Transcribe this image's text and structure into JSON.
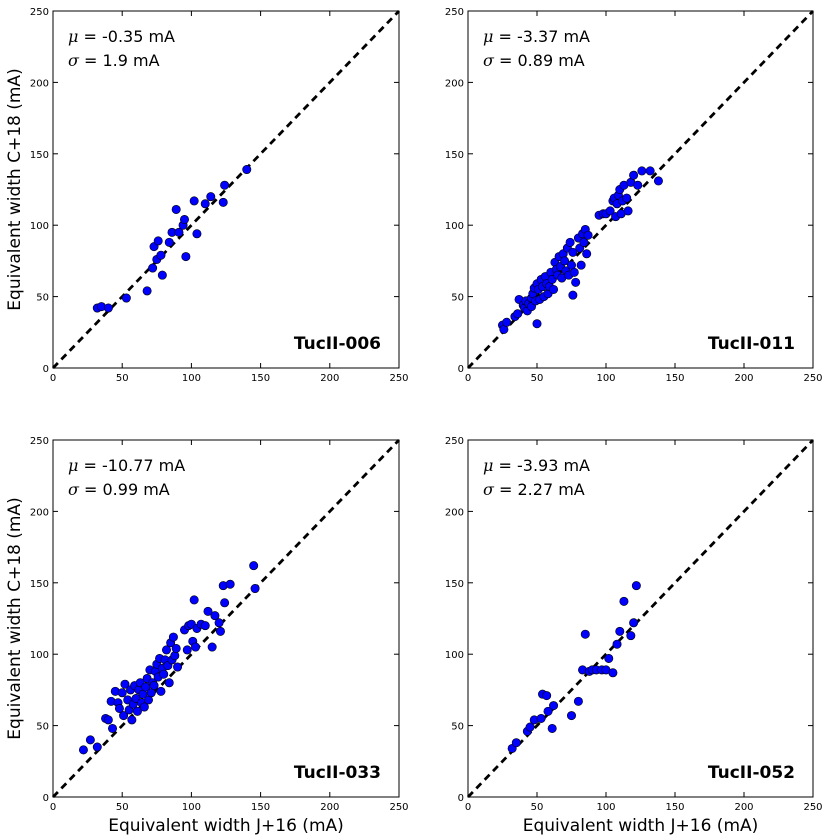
{
  "figure": {
    "xlabel": "Equivalent width J+16 (mA)",
    "ylabel": "Equivalent width C+18 (mA)",
    "mu_symbol": "μ",
    "sigma_symbol": "σ"
  },
  "chart_data": [
    {
      "type": "scatter",
      "name": "TucII-006",
      "mu_text": " = -0.35 mA",
      "sigma_text": " = 1.9 mA",
      "xlim": [
        0,
        250
      ],
      "ylim": [
        0,
        250
      ],
      "xticks": [
        0,
        50,
        100,
        150,
        200,
        250
      ],
      "yticks": [
        0,
        50,
        100,
        150,
        200,
        250
      ],
      "xlabel": "",
      "ylabel": "Equivalent width C+18 (mA)",
      "reference_line": "y = x (dashed)",
      "marker_color": "#0000ff",
      "points": [
        [
          32,
          42
        ],
        [
          35,
          43
        ],
        [
          40,
          42
        ],
        [
          53,
          49
        ],
        [
          68,
          54
        ],
        [
          72,
          70
        ],
        [
          73,
          85
        ],
        [
          75,
          76
        ],
        [
          76,
          89
        ],
        [
          78,
          79
        ],
        [
          79,
          65
        ],
        [
          84,
          88
        ],
        [
          86,
          95
        ],
        [
          89,
          111
        ],
        [
          91,
          95
        ],
        [
          94,
          100
        ],
        [
          95,
          104
        ],
        [
          96,
          78
        ],
        [
          102,
          117
        ],
        [
          104,
          94
        ],
        [
          110,
          115
        ],
        [
          114,
          120
        ],
        [
          123,
          116
        ],
        [
          124,
          128
        ],
        [
          140,
          139
        ]
      ]
    },
    {
      "type": "scatter",
      "name": "TucII-011",
      "mu_text": " = -3.37 mA",
      "sigma_text": " = 0.89 mA",
      "xlim": [
        0,
        250
      ],
      "ylim": [
        0,
        250
      ],
      "xticks": [
        0,
        50,
        100,
        150,
        200,
        250
      ],
      "yticks": [
        0,
        50,
        100,
        150,
        200,
        250
      ],
      "xlabel": "",
      "ylabel": "",
      "reference_line": "y = x (dashed)",
      "marker_color": "#0000ff",
      "points": [
        [
          25,
          30
        ],
        [
          26,
          27
        ],
        [
          28,
          32
        ],
        [
          34,
          36
        ],
        [
          36,
          38
        ],
        [
          37,
          48
        ],
        [
          40,
          44
        ],
        [
          41,
          42
        ],
        [
          42,
          47
        ],
        [
          43,
          40
        ],
        [
          44,
          45
        ],
        [
          46,
          49
        ],
        [
          46,
          43
        ],
        [
          47,
          52
        ],
        [
          48,
          56
        ],
        [
          49,
          47
        ],
        [
          50,
          31
        ],
        [
          50,
          59
        ],
        [
          51,
          55
        ],
        [
          52,
          48
        ],
        [
          53,
          62
        ],
        [
          54,
          57
        ],
        [
          55,
          50
        ],
        [
          56,
          64
        ],
        [
          57,
          59
        ],
        [
          58,
          52
        ],
        [
          59,
          57
        ],
        [
          60,
          67
        ],
        [
          61,
          62
        ],
        [
          62,
          55
        ],
        [
          63,
          74
        ],
        [
          64,
          69
        ],
        [
          65,
          65
        ],
        [
          66,
          78
        ],
        [
          67,
          71
        ],
        [
          68,
          63
        ],
        [
          69,
          80
        ],
        [
          70,
          75
        ],
        [
          71,
          68
        ],
        [
          72,
          84
        ],
        [
          73,
          65
        ],
        [
          74,
          88
        ],
        [
          75,
          72
        ],
        [
          76,
          81
        ],
        [
          76,
          51
        ],
        [
          77,
          67
        ],
        [
          78,
          60
        ],
        [
          80,
          91
        ],
        [
          81,
          84
        ],
        [
          82,
          72
        ],
        [
          83,
          94
        ],
        [
          84,
          88
        ],
        [
          85,
          97
        ],
        [
          86,
          80
        ],
        [
          87,
          93
        ],
        [
          95,
          107
        ],
        [
          98,
          108
        ],
        [
          100,
          108
        ],
        [
          103,
          110
        ],
        [
          105,
          117
        ],
        [
          106,
          119
        ],
        [
          107,
          106
        ],
        [
          108,
          115
        ],
        [
          109,
          121
        ],
        [
          110,
          125
        ],
        [
          111,
          108
        ],
        [
          112,
          117
        ],
        [
          113,
          128
        ],
        [
          115,
          119
        ],
        [
          116,
          110
        ],
        [
          118,
          130
        ],
        [
          120,
          135
        ],
        [
          123,
          128
        ],
        [
          126,
          138
        ],
        [
          132,
          138
        ],
        [
          138,
          131
        ]
      ]
    },
    {
      "type": "scatter",
      "name": "TucII-033",
      "mu_text": " = -10.77 mA",
      "sigma_text": " = 0.99 mA",
      "xlim": [
        0,
        250
      ],
      "ylim": [
        0,
        250
      ],
      "xticks": [
        0,
        50,
        100,
        150,
        200,
        250
      ],
      "yticks": [
        0,
        50,
        100,
        150,
        200,
        250
      ],
      "xlabel": "Equivalent width J+16 (mA)",
      "ylabel": "Equivalent width C+18 (mA)",
      "reference_line": "y = x (dashed)",
      "marker_color": "#0000ff",
      "points": [
        [
          22,
          33
        ],
        [
          27,
          40
        ],
        [
          32,
          35
        ],
        [
          38,
          55
        ],
        [
          40,
          54
        ],
        [
          42,
          67
        ],
        [
          43,
          48
        ],
        [
          45,
          74
        ],
        [
          47,
          66
        ],
        [
          48,
          62
        ],
        [
          50,
          73
        ],
        [
          51,
          57
        ],
        [
          52,
          79
        ],
        [
          54,
          68
        ],
        [
          55,
          61
        ],
        [
          56,
          75
        ],
        [
          57,
          54
        ],
        [
          58,
          65
        ],
        [
          59,
          78
        ],
        [
          60,
          69
        ],
        [
          61,
          60
        ],
        [
          62,
          75
        ],
        [
          63,
          80
        ],
        [
          64,
          66
        ],
        [
          65,
          72
        ],
        [
          66,
          63
        ],
        [
          67,
          77
        ],
        [
          68,
          83
        ],
        [
          69,
          68
        ],
        [
          70,
          89
        ],
        [
          71,
          73
        ],
        [
          72,
          80
        ],
        [
          73,
          78
        ],
        [
          74,
          88
        ],
        [
          75,
          93
        ],
        [
          76,
          84
        ],
        [
          77,
          97
        ],
        [
          78,
          74
        ],
        [
          79,
          90
        ],
        [
          80,
          86
        ],
        [
          81,
          96
        ],
        [
          82,
          103
        ],
        [
          83,
          92
        ],
        [
          84,
          80
        ],
        [
          85,
          108
        ],
        [
          86,
          96
        ],
        [
          87,
          112
        ],
        [
          88,
          99
        ],
        [
          89,
          104
        ],
        [
          90,
          91
        ],
        [
          95,
          117
        ],
        [
          97,
          103
        ],
        [
          98,
          120
        ],
        [
          100,
          121
        ],
        [
          101,
          109
        ],
        [
          102,
          138
        ],
        [
          103,
          105
        ],
        [
          104,
          118
        ],
        [
          107,
          121
        ],
        [
          110,
          120
        ],
        [
          112,
          130
        ],
        [
          115,
          105
        ],
        [
          117,
          127
        ],
        [
          120,
          122
        ],
        [
          121,
          116
        ],
        [
          123,
          148
        ],
        [
          124,
          136
        ],
        [
          128,
          149
        ],
        [
          145,
          162
        ],
        [
          146,
          146
        ]
      ]
    },
    {
      "type": "scatter",
      "name": "TucII-052",
      "mu_text": " = -3.93 mA",
      "sigma_text": " = 2.27 mA",
      "xlim": [
        0,
        250
      ],
      "ylim": [
        0,
        250
      ],
      "xticks": [
        0,
        50,
        100,
        150,
        200,
        250
      ],
      "yticks": [
        0,
        50,
        100,
        150,
        200,
        250
      ],
      "xlabel": "Equivalent width J+16 (mA)",
      "ylabel": "",
      "reference_line": "y = x (dashed)",
      "marker_color": "#0000ff",
      "points": [
        [
          32,
          34
        ],
        [
          35,
          38
        ],
        [
          43,
          46
        ],
        [
          45,
          49
        ],
        [
          48,
          54
        ],
        [
          53,
          55
        ],
        [
          54,
          72
        ],
        [
          57,
          71
        ],
        [
          58,
          60
        ],
        [
          61,
          48
        ],
        [
          62,
          64
        ],
        [
          75,
          57
        ],
        [
          80,
          67
        ],
        [
          83,
          89
        ],
        [
          85,
          114
        ],
        [
          88,
          88
        ],
        [
          90,
          89
        ],
        [
          93,
          89
        ],
        [
          97,
          89
        ],
        [
          100,
          89
        ],
        [
          102,
          97
        ],
        [
          105,
          87
        ],
        [
          108,
          107
        ],
        [
          110,
          116
        ],
        [
          113,
          137
        ],
        [
          118,
          113
        ],
        [
          120,
          122
        ],
        [
          122,
          148
        ]
      ]
    }
  ]
}
